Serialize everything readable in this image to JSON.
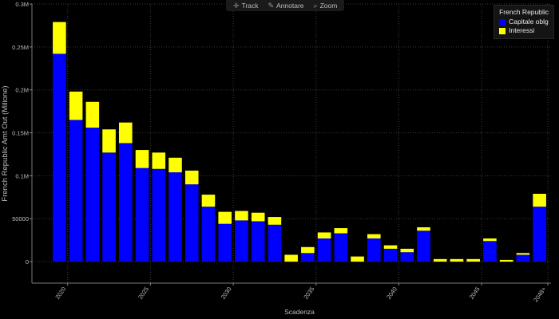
{
  "toolbar": {
    "track_label": "Track",
    "annotate_label": "Annotare",
    "zoom_label": "Zoom"
  },
  "legend": {
    "title": "French Republic",
    "items": [
      {
        "label": "Capitale oblg",
        "color": "#0000ff"
      },
      {
        "label": "Interessi",
        "color": "#ffff00"
      }
    ]
  },
  "chart_data": {
    "type": "bar",
    "stacked": true,
    "xlabel": "Scadenza",
    "ylabel": "French Republic Amt Out (Milione)",
    "ylim": [
      -25000,
      300000
    ],
    "yticks": [
      0,
      50000,
      100000,
      150000,
      200000,
      250000,
      300000
    ],
    "ytick_labels": [
      "0",
      "50000",
      "0.1M",
      "0.15M",
      "0.2M",
      "0.25M",
      "0.3M"
    ],
    "xtick_labels": [
      {
        "label": "2020",
        "after_category": "2019"
      },
      {
        "label": "2025",
        "after_category": "2024"
      },
      {
        "label": "2030",
        "after_category": "2029"
      },
      {
        "label": "2035",
        "after_category": "2034"
      },
      {
        "label": "2040",
        "after_category": "2039"
      },
      {
        "label": "2045",
        "after_category": "2044"
      },
      {
        "label": "2048+",
        "after_category": "2048+"
      }
    ],
    "categories": [
      "2019",
      "2020",
      "2021",
      "2022",
      "2023",
      "2024",
      "2025",
      "2026",
      "2027",
      "2028",
      "2029",
      "2030",
      "2031",
      "2032",
      "2033",
      "2034",
      "2035",
      "2036",
      "2037",
      "2038",
      "2039",
      "2040",
      "2041",
      "2042",
      "2043",
      "2044",
      "2045",
      "2046",
      "2047",
      "2048+"
    ],
    "series": [
      {
        "name": "Capitale oblg",
        "color": "#0000ff",
        "values": [
          242000,
          165000,
          156000,
          127000,
          138000,
          109000,
          108000,
          104000,
          90000,
          64000,
          44000,
          48000,
          47000,
          43000,
          0,
          10000,
          27000,
          33000,
          0,
          27000,
          15000,
          11000,
          36000,
          0,
          0,
          0,
          24000,
          0,
          8000,
          64000
        ]
      },
      {
        "name": "Interessi",
        "color": "#ffff00",
        "values": [
          37000,
          33000,
          30000,
          27000,
          24000,
          21000,
          19000,
          17000,
          16000,
          14000,
          14000,
          11000,
          10000,
          9000,
          8000,
          7000,
          7000,
          6000,
          6000,
          5000,
          4000,
          4000,
          4000,
          3000,
          3000,
          3000,
          3000,
          2000,
          2000,
          15000
        ]
      }
    ]
  }
}
